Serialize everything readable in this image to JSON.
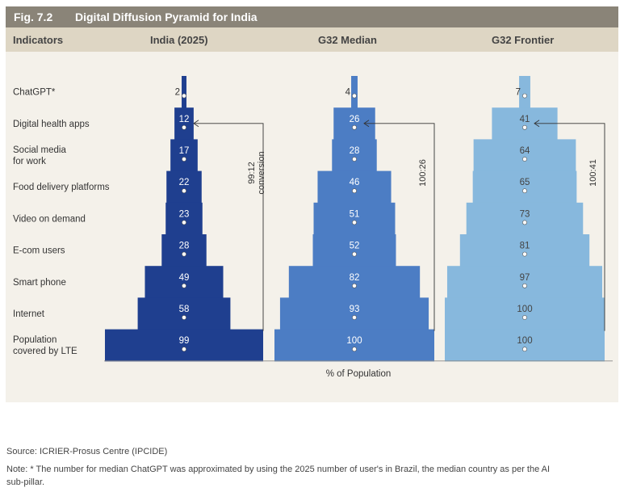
{
  "figure": {
    "label": "Fig. 7.2",
    "title": "Digital Diffusion Pyramid for India",
    "header": {
      "indicators": "Indicators",
      "col1": "India (2025)",
      "col2": "G32 Median",
      "col3": "G32 Frontier"
    }
  },
  "chart_data": {
    "type": "bar",
    "xlabel": "% of Population",
    "categories": [
      [
        "ChatGPT*"
      ],
      [
        "Digital health apps"
      ],
      [
        "Social media",
        "for work"
      ],
      [
        "Food delivery platforms"
      ],
      [
        "Video on demand"
      ],
      [
        "E-com users"
      ],
      [
        "Smart phone"
      ],
      [
        "Internet"
      ],
      [
        "Population",
        "covered by LTE"
      ]
    ],
    "series": [
      {
        "name": "India (2025)",
        "values": [
          2,
          12,
          17,
          22,
          23,
          28,
          49,
          58,
          99
        ],
        "color": "#1f3f8f",
        "conversion": [
          "99:12",
          "conversion"
        ]
      },
      {
        "name": "G32 Median",
        "values": [
          4,
          26,
          28,
          46,
          51,
          52,
          82,
          93,
          100
        ],
        "color": "#4c7dc4",
        "conversion": [
          "100:26"
        ]
      },
      {
        "name": "G32 Frontier",
        "values": [
          7,
          41,
          64,
          65,
          73,
          81,
          97,
          100,
          100
        ],
        "color": "#87b8dd",
        "conversion": [
          "100:41"
        ]
      }
    ]
  },
  "footer": {
    "source": "Source: ICRIER-Prosus Centre (IPCIDE)",
    "note_line1": "Note: * The number for median ChatGPT was approximated by using the 2025 number of user's in Brazil, the median country as per the AI",
    "note_line2": "sub-pillar."
  }
}
